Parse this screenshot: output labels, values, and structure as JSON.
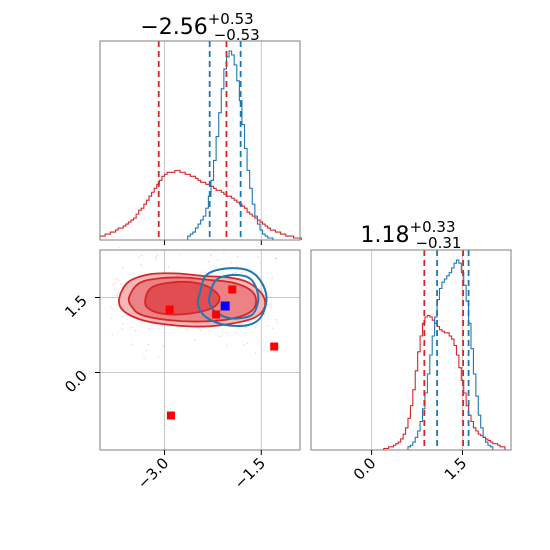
{
  "colors": {
    "red": "#d62728",
    "blue": "#1f77b4",
    "red_fill_outer": "#f4b0b0",
    "red_fill_inner": "#e0484b",
    "grid": "#c8c8c8",
    "frame": "#7f7f7f",
    "marker_blue": "#0000ff",
    "marker_red": "#ff0000"
  },
  "chart_data": [
    {
      "type": "histogram",
      "panel": "top-left",
      "title": {
        "main": "−2.56",
        "sup": "+0.53",
        "sub": "−0.53"
      },
      "xlim": [
        -4.0,
        -0.9
      ],
      "grid": true,
      "red_quantiles": [
        -3.09,
        -2.04
      ],
      "blue_quantiles": [
        -2.3,
        -1.82
      ],
      "red_hist": {
        "bin_start": -4.0,
        "bin_width": 0.04,
        "counts": [
          2,
          2,
          3,
          3,
          4,
          4,
          5,
          6,
          6,
          7,
          8,
          9,
          10,
          11,
          13,
          15,
          16,
          18,
          20,
          22,
          24,
          26,
          28,
          30,
          32,
          33,
          34,
          34,
          34,
          35,
          35,
          34,
          34,
          33,
          33,
          32,
          32,
          31,
          30,
          29,
          29,
          28,
          28,
          27,
          26,
          25,
          25,
          24,
          23,
          22,
          22,
          21,
          20,
          19,
          18,
          17,
          16,
          14,
          13,
          12,
          11,
          10,
          9,
          8,
          7,
          6,
          5,
          5,
          4,
          4,
          3,
          3,
          2,
          2,
          2,
          1,
          1,
          1
        ]
      },
      "blue_hist": {
        "bin_start": -2.64,
        "bin_width": 0.04,
        "counts": [
          2,
          3,
          4,
          6,
          8,
          10,
          12,
          16,
          22,
          30,
          40,
          52,
          64,
          76,
          86,
          92,
          95,
          93,
          88,
          80,
          70,
          58,
          46,
          35,
          26,
          18,
          12,
          8,
          5,
          3,
          2,
          1,
          1
        ]
      }
    },
    {
      "type": "histogram",
      "panel": "bottom-right",
      "title": {
        "main": "1.18",
        "sup": "+0.33",
        "sub": "−0.31"
      },
      "xlim": [
        -1.0,
        2.3
      ],
      "ticks": [
        "0.0",
        "1.5"
      ],
      "tick_values": [
        0.0,
        1.5
      ],
      "grid": true,
      "red_quantiles": [
        0.87,
        1.51
      ],
      "blue_quantiles": [
        1.08,
        1.6
      ],
      "red_hist": {
        "bin_start": 0.2,
        "bin_width": 0.04,
        "counts": [
          1,
          1,
          2,
          2,
          3,
          4,
          5,
          7,
          10,
          14,
          20,
          28,
          38,
          50,
          62,
          72,
          80,
          84,
          85,
          84,
          82,
          80,
          78,
          76,
          75,
          74,
          74,
          72,
          70,
          66,
          60,
          52,
          44,
          36,
          28,
          22,
          18,
          14,
          12,
          10,
          9,
          8,
          7,
          6,
          5,
          4,
          4,
          3,
          2,
          2
        ]
      },
      "blue_hist": {
        "bin_start": 0.6,
        "bin_width": 0.04,
        "counts": [
          2,
          3,
          5,
          8,
          12,
          18,
          26,
          36,
          48,
          60,
          72,
          84,
          95,
          102,
          106,
          108,
          110,
          112,
          115,
          118,
          120,
          118,
          112,
          104,
          94,
          80,
          64,
          48,
          34,
          22,
          14,
          8,
          5,
          3,
          2
        ]
      }
    },
    {
      "type": "contour-scatter",
      "panel": "bottom-left",
      "xlim": [
        -4.0,
        -0.9
      ],
      "ylim": [
        -1.55,
        2.45
      ],
      "xticks": [
        "−3.0",
        "−1.5"
      ],
      "xtick_values": [
        -3.0,
        -1.5
      ],
      "yticks": [
        "0.0",
        "1.5"
      ],
      "ytick_values": [
        0.0,
        1.5
      ],
      "grid": true,
      "red_contours": [
        {
          "level": "outer",
          "points": [
            [
              -3.7,
              1.5
            ],
            [
              -3.55,
              1.82
            ],
            [
              -3.2,
              1.97
            ],
            [
              -2.8,
              1.98
            ],
            [
              -2.4,
              1.93
            ],
            [
              -2.0,
              1.9
            ],
            [
              -1.7,
              1.8
            ],
            [
              -1.48,
              1.55
            ],
            [
              -1.45,
              1.3
            ],
            [
              -1.6,
              1.1
            ],
            [
              -1.95,
              0.98
            ],
            [
              -2.4,
              0.92
            ],
            [
              -2.9,
              0.95
            ],
            [
              -3.35,
              1.05
            ],
            [
              -3.65,
              1.25
            ]
          ]
        },
        {
          "level": "middle",
          "points": [
            [
              -3.55,
              1.5
            ],
            [
              -3.4,
              1.78
            ],
            [
              -3.1,
              1.88
            ],
            [
              -2.7,
              1.9
            ],
            [
              -2.3,
              1.85
            ],
            [
              -1.95,
              1.8
            ],
            [
              -1.68,
              1.66
            ],
            [
              -1.58,
              1.45
            ],
            [
              -1.66,
              1.22
            ],
            [
              -1.98,
              1.07
            ],
            [
              -2.45,
              1.02
            ],
            [
              -2.95,
              1.05
            ],
            [
              -3.35,
              1.15
            ],
            [
              -3.5,
              1.3
            ]
          ]
        },
        {
          "level": "inner",
          "points": [
            [
              -3.3,
              1.45
            ],
            [
              -3.2,
              1.7
            ],
            [
              -2.9,
              1.8
            ],
            [
              -2.55,
              1.8
            ],
            [
              -2.3,
              1.7
            ],
            [
              -2.15,
              1.5
            ],
            [
              -2.25,
              1.3
            ],
            [
              -2.6,
              1.18
            ],
            [
              -3.0,
              1.17
            ],
            [
              -3.25,
              1.28
            ]
          ]
        }
      ],
      "blue_contours": [
        {
          "level": "outer",
          "points": [
            [
              -2.45,
              1.6
            ],
            [
              -2.35,
              1.95
            ],
            [
              -2.05,
              2.08
            ],
            [
              -1.72,
              2.05
            ],
            [
              -1.52,
              1.85
            ],
            [
              -1.42,
              1.5
            ],
            [
              -1.5,
              1.12
            ],
            [
              -1.7,
              0.95
            ],
            [
              -2.05,
              0.95
            ],
            [
              -2.35,
              1.1
            ],
            [
              -2.48,
              1.35
            ]
          ]
        },
        {
          "level": "inner",
          "points": [
            [
              -2.3,
              1.55
            ],
            [
              -2.2,
              1.85
            ],
            [
              -1.95,
              1.95
            ],
            [
              -1.7,
              1.9
            ],
            [
              -1.58,
              1.7
            ],
            [
              -1.55,
              1.42
            ],
            [
              -1.65,
              1.15
            ],
            [
              -1.95,
              1.08
            ],
            [
              -2.2,
              1.2
            ],
            [
              -2.3,
              1.38
            ]
          ]
        }
      ],
      "blue_markers": [
        [
          -2.06,
          1.33
        ]
      ],
      "red_markers": [
        [
          -2.92,
          1.26
        ],
        [
          -1.95,
          1.66
        ],
        [
          -2.2,
          1.16
        ],
        [
          -1.3,
          0.52
        ],
        [
          -2.9,
          -0.86
        ]
      ]
    }
  ]
}
